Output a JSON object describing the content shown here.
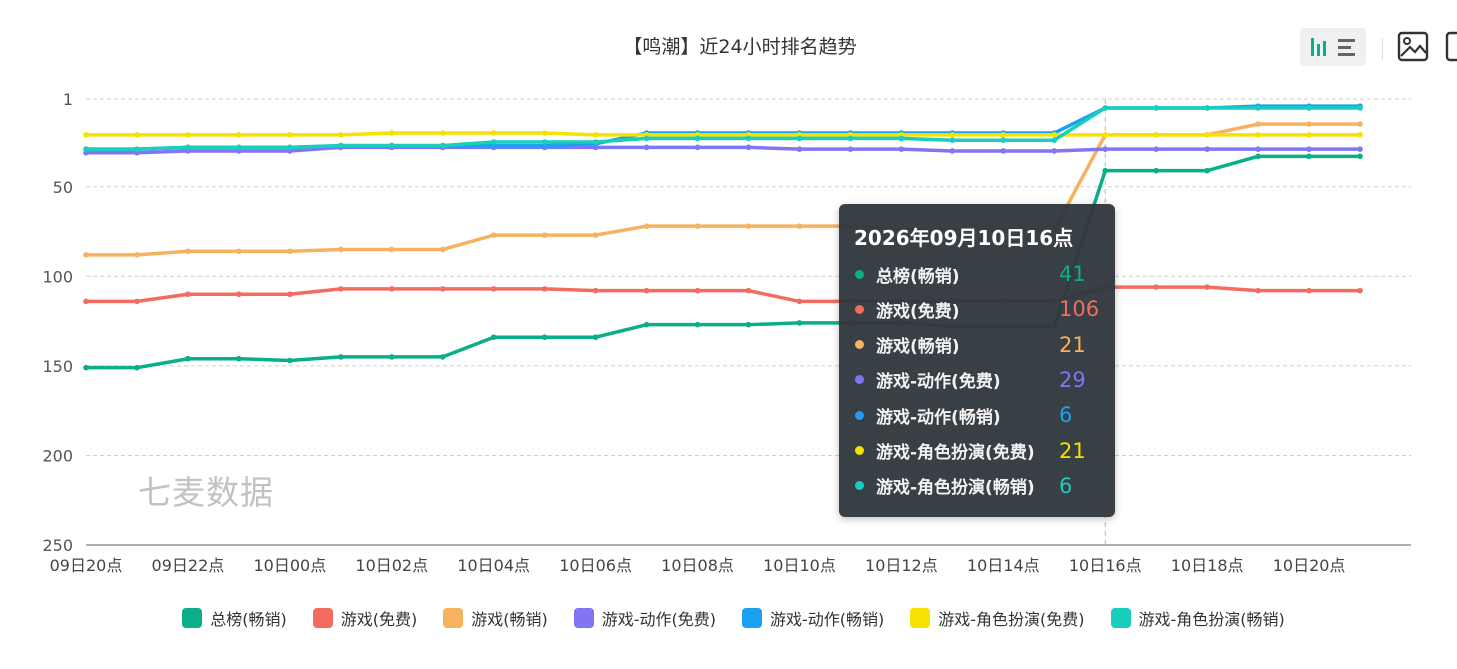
{
  "chart_data": {
    "type": "line",
    "title": "【鸣潮】近24小时排名趋势",
    "y_axis": {
      "inverted": true,
      "min": 1,
      "max": 250,
      "ticks": [
        1,
        50,
        100,
        150,
        200,
        250
      ]
    },
    "x_tick_labels": [
      "09日20点",
      "09日22点",
      "10日00点",
      "10日02点",
      "10日04点",
      "10日06点",
      "10日08点",
      "10日10点",
      "10日12点",
      "10日14点",
      "10日16点",
      "10日18点",
      "10日20点"
    ],
    "x": [
      "09日20点",
      "09日21点",
      "09日22点",
      "09日23点",
      "10日00点",
      "10日01点",
      "10日02点",
      "10日03点",
      "10日04点",
      "10日05点",
      "10日06点",
      "10日07点",
      "10日08点",
      "10日09点",
      "10日10点",
      "10日11点",
      "10日12点",
      "10日13点",
      "10日14点",
      "10日15点",
      "10日16点",
      "10日17点",
      "10日18点",
      "10日19点",
      "10日20点",
      "10日21点"
    ],
    "series": [
      {
        "name": "总榜(畅销)",
        "color": "#0aae88",
        "values": [
          151,
          151,
          146,
          146,
          147,
          145,
          145,
          145,
          134,
          134,
          134,
          127,
          127,
          127,
          126,
          126,
          126,
          128,
          128,
          128,
          41,
          41,
          41,
          33,
          33,
          33
        ]
      },
      {
        "name": "游戏(免费)",
        "color": "#f26d60",
        "values": [
          114,
          114,
          110,
          110,
          110,
          107,
          107,
          107,
          107,
          107,
          108,
          108,
          108,
          108,
          114,
          114,
          114,
          114,
          114,
          114,
          106,
          106,
          106,
          108,
          108,
          108
        ]
      },
      {
        "name": "游戏(畅销)",
        "color": "#f7b25f",
        "values": [
          88,
          88,
          86,
          86,
          86,
          85,
          85,
          85,
          77,
          77,
          77,
          72,
          72,
          72,
          72,
          72,
          74,
          74,
          74,
          74,
          21,
          21,
          21,
          15,
          15,
          15
        ]
      },
      {
        "name": "游戏-动作(免费)",
        "color": "#8075f3",
        "values": [
          31,
          31,
          30,
          30,
          30,
          28,
          28,
          28,
          28,
          28,
          28,
          28,
          28,
          28,
          29,
          29,
          29,
          30,
          30,
          30,
          29,
          29,
          29,
          29,
          29,
          29
        ]
      },
      {
        "name": "游戏-动作(畅销)",
        "color": "#1ba1f2",
        "values": [
          29,
          29,
          28,
          28,
          28,
          27,
          27,
          27,
          27,
          27,
          26,
          20,
          20,
          20,
          20,
          20,
          20,
          20,
          20,
          20,
          6,
          6,
          6,
          5,
          5,
          5
        ]
      },
      {
        "name": "游戏-角色扮演(免费)",
        "color": "#f7e100",
        "values": [
          21,
          21,
          21,
          21,
          21,
          21,
          20,
          20,
          20,
          20,
          21,
          21,
          21,
          21,
          21,
          21,
          21,
          21,
          21,
          21,
          21,
          21,
          21,
          21,
          21,
          21
        ]
      },
      {
        "name": "游戏-角色扮演(畅销)",
        "color": "#19cebc",
        "values": [
          29,
          29,
          28,
          28,
          28,
          27,
          27,
          27,
          25,
          25,
          25,
          23,
          23,
          23,
          23,
          23,
          23,
          24,
          24,
          24,
          6,
          6,
          6,
          6,
          6,
          6
        ]
      }
    ],
    "tooltip": {
      "title": "2026年09月10日16点",
      "rows": [
        {
          "name": "总榜(畅销)",
          "value": "41",
          "color": "#0aae88"
        },
        {
          "name": "游戏(免费)",
          "value": "106",
          "color": "#f26d60"
        },
        {
          "name": "游戏(畅销)",
          "value": "21",
          "color": "#f7b25f"
        },
        {
          "name": "游戏-动作(免费)",
          "value": "29",
          "color": "#8075f3"
        },
        {
          "name": "游戏-动作(畅销)",
          "value": "6",
          "color": "#1ba1f2"
        },
        {
          "name": "游戏-角色扮演(免费)",
          "value": "21",
          "color": "#f7e100"
        },
        {
          "name": "游戏-角色扮演(畅销)",
          "value": "6",
          "color": "#19cebc"
        }
      ]
    },
    "grid": true,
    "legend_position": "bottom"
  },
  "watermark": "七麦数据",
  "toolbar": {
    "icons": [
      "bar-line-toggle-icon",
      "list-icon",
      "image-download-icon",
      "more-icon"
    ]
  }
}
